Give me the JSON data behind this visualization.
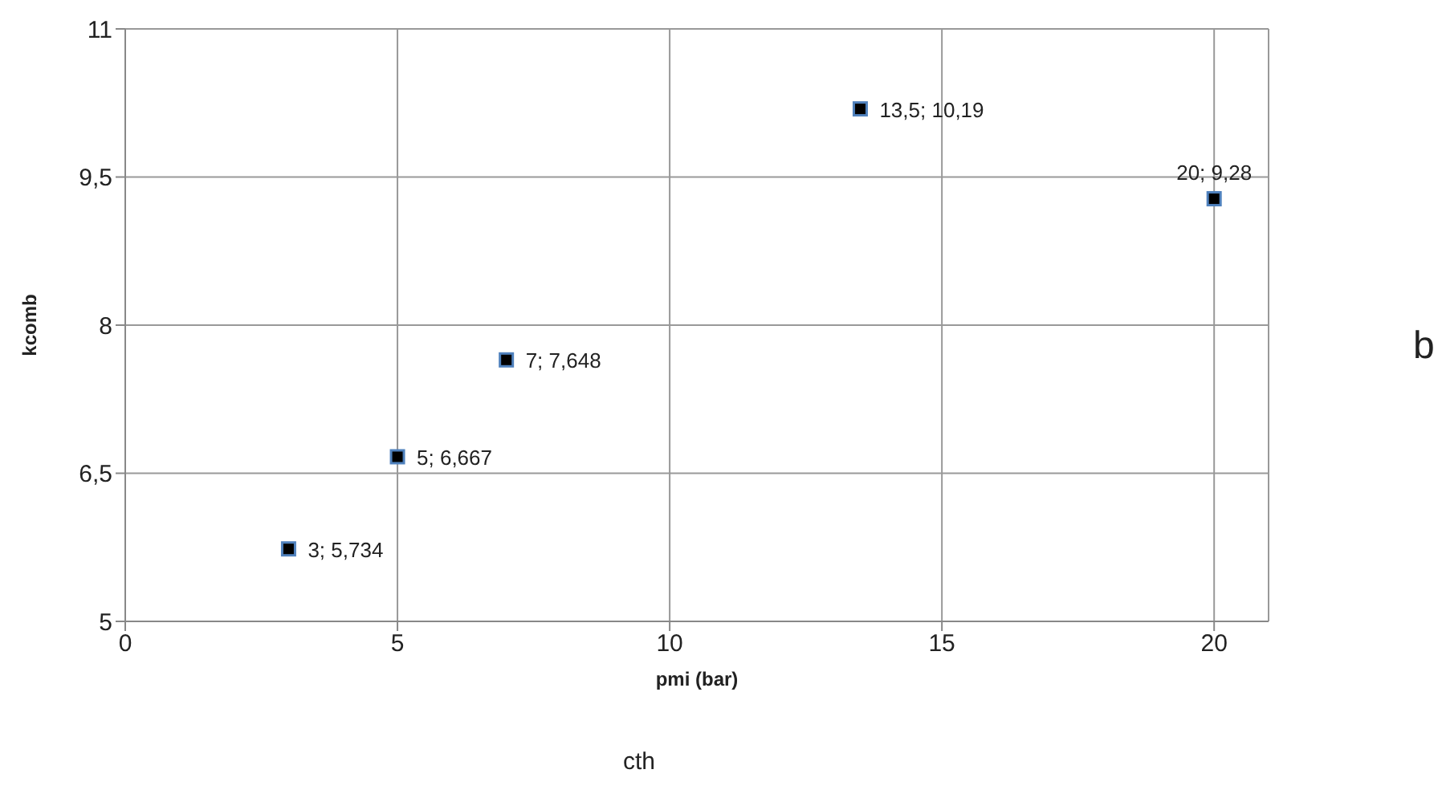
{
  "chart_data": {
    "type": "scatter",
    "xlabel": "pmi (bar)",
    "ylabel": "kcomb",
    "annotations": [
      "b",
      "cth"
    ],
    "x": [
      3,
      5,
      7,
      13.5,
      20
    ],
    "series": [
      {
        "color": "#000000",
        "values": [
          5.734,
          6.667,
          7.648,
          10.19,
          9.28
        ],
        "value_labels": [
          "3; 5,734",
          "5; 6,667",
          "7; 7,648",
          "13,5; 10,19",
          "20; 9,28"
        ]
      }
    ],
    "xlim": [
      0,
      21
    ],
    "xticks": [
      0,
      5,
      10,
      15,
      20
    ],
    "ylim": [
      5,
      11
    ],
    "yticks": [
      5,
      {
        "value": 6.5,
        "label": "6,5"
      },
      8,
      {
        "value": 9.5,
        "label": "9,5"
      },
      11
    ],
    "grid": true,
    "marker": "square",
    "legend": false
  }
}
